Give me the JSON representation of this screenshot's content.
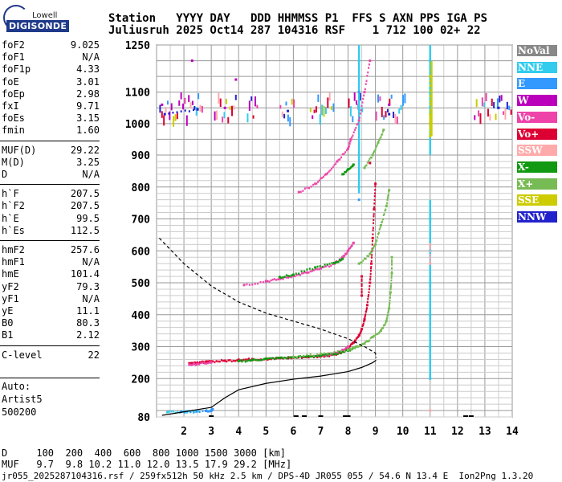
{
  "logo": {
    "top": "Lowell",
    "main": "DIGISONDE"
  },
  "header": {
    "line1": "Station   YYYY DAY   DDD HHMMSS P1  FFS S AXN PPS IGA PS",
    "line2": "Juliusruh 2025 Oct14 287 104316 RSF    1 712 100 02+ 22"
  },
  "params": {
    "group1": [
      {
        "label": "foF2",
        "value": "9.025"
      },
      {
        "label": "foF1",
        "value": "N/A"
      },
      {
        "label": "foF1p",
        "value": "4.33"
      },
      {
        "label": "foE",
        "value": "3.01"
      },
      {
        "label": "foEp",
        "value": "2.98"
      },
      {
        "label": "fxI",
        "value": "9.71"
      },
      {
        "label": "foEs",
        "value": "3.15"
      },
      {
        "label": "fmin",
        "value": "1.60"
      }
    ],
    "group2": [
      {
        "label": "MUF(D)",
        "value": "29.22"
      },
      {
        "label": "M(D)",
        "value": "3.25"
      },
      {
        "label": "D",
        "value": "N/A"
      }
    ],
    "group3": [
      {
        "label": "h`F",
        "value": "207.5"
      },
      {
        "label": "h`F2",
        "value": "207.5"
      },
      {
        "label": "h`E",
        "value": "99.5"
      },
      {
        "label": "h`Es",
        "value": "112.5"
      }
    ],
    "group4": [
      {
        "label": "hmF2",
        "value": "257.6"
      },
      {
        "label": "hmF1",
        "value": "N/A"
      },
      {
        "label": "hmE",
        "value": "101.4"
      },
      {
        "label": "yF2",
        "value": "79.3"
      },
      {
        "label": "yF1",
        "value": "N/A"
      },
      {
        "label": "yE",
        "value": "11.1"
      },
      {
        "label": "B0",
        "value": "80.3"
      },
      {
        "label": "B1",
        "value": "2.12"
      }
    ],
    "group5": [
      {
        "label": "C-level",
        "value": "22"
      }
    ]
  },
  "auto": {
    "line1": "Auto:",
    "line2": "Artist5",
    "line3": "500200"
  },
  "legend": [
    {
      "label": "NoVal",
      "color": "#888888"
    },
    {
      "label": "NNE",
      "color": "#33ccee"
    },
    {
      "label": "E",
      "color": "#3399ff"
    },
    {
      "label": "W",
      "color": "#bb00bb"
    },
    {
      "label": "Vo-",
      "color": "#ee44aa"
    },
    {
      "label": "Vo+",
      "color": "#dd0033"
    },
    {
      "label": "SSW",
      "color": "#ffaaaa"
    },
    {
      "label": "X-",
      "color": "#119911"
    },
    {
      "label": "X+",
      "color": "#77bb55"
    },
    {
      "label": "SSE",
      "color": "#cccc00"
    },
    {
      "label": "NNW",
      "color": "#2222cc"
    }
  ],
  "footer": {
    "d_line": "D     100  200  400  600  800 1000 1500 3000 [km]",
    "muf_line": "MUF   9.7  9.8 10.2 11.0 12.0 13.5 17.9 29.2 [MHz]",
    "file_line": "jr055_2025287104316.rsf / 259fx512h 50 kHz 2.5 km / DPS-4D JR055 055 / 54.6 N 13.4 E  Ion2Png 1.3.20"
  },
  "chart_data": {
    "type": "scatter",
    "xlabel": "",
    "ylabel": "",
    "xlim": [
      1,
      14
    ],
    "ylim": [
      80,
      1250
    ],
    "y_scale": "piecewise (80-900 linear, 900-1250 compressed)",
    "x_ticks": [
      2,
      3,
      4,
      5,
      6,
      7,
      8,
      9,
      10,
      11,
      12,
      13,
      14
    ],
    "y_ticks": [
      80,
      200,
      300,
      400,
      500,
      600,
      700,
      800,
      900,
      1000,
      1100,
      1250
    ],
    "grid": true,
    "legend_position": "right",
    "series": [
      {
        "name": "Vo+",
        "color": "#dd0033",
        "points": [
          [
            2.2,
            248
          ],
          [
            2.4,
            250
          ],
          [
            2.6,
            251
          ],
          [
            2.8,
            252
          ],
          [
            3.0,
            254
          ],
          [
            3.5,
            256
          ],
          [
            4.0,
            259
          ],
          [
            4.5,
            261
          ],
          [
            5.0,
            262
          ],
          [
            5.5,
            264
          ],
          [
            6.0,
            266
          ],
          [
            6.5,
            268
          ],
          [
            7.0,
            270
          ],
          [
            7.5,
            276
          ],
          [
            7.8,
            285
          ],
          [
            8.0,
            297
          ],
          [
            8.2,
            313
          ],
          [
            8.4,
            335
          ],
          [
            8.5,
            355
          ],
          [
            8.6,
            385
          ],
          [
            8.7,
            430
          ],
          [
            8.8,
            500
          ],
          [
            8.85,
            560
          ],
          [
            8.9,
            640
          ],
          [
            8.95,
            730
          ],
          [
            9.0,
            810
          ],
          [
            8.5,
            460
          ],
          [
            8.5,
            520
          ],
          [
            8.8,
            875
          ]
        ]
      },
      {
        "name": "Vo-",
        "color": "#ee44aa",
        "points": [
          [
            2.2,
            244
          ],
          [
            2.5,
            246
          ],
          [
            3.0,
            251
          ],
          [
            6.8,
            270
          ],
          [
            7.0,
            272
          ],
          [
            7.4,
            278
          ],
          [
            7.8,
            290
          ],
          [
            8.0,
            300
          ],
          [
            4.2,
            493
          ],
          [
            5.0,
            505
          ],
          [
            5.5,
            512
          ],
          [
            6.0,
            522
          ],
          [
            6.5,
            532
          ],
          [
            7.0,
            545
          ],
          [
            7.5,
            560
          ],
          [
            7.8,
            580
          ],
          [
            8.0,
            600
          ],
          [
            8.2,
            625
          ],
          [
            6.2,
            784
          ],
          [
            6.8,
            810
          ],
          [
            7.2,
            840
          ],
          [
            7.6,
            880
          ],
          [
            8.0,
            920
          ],
          [
            8.1,
            950
          ],
          [
            8.4,
            1010
          ],
          [
            8.6,
            1100
          ],
          [
            8.8,
            1200
          ]
        ]
      },
      {
        "name": "X-",
        "color": "#119911",
        "points": [
          [
            4.0,
            255
          ],
          [
            4.5,
            258
          ],
          [
            5.0,
            262
          ],
          [
            5.5,
            265
          ],
          [
            6.0,
            267
          ],
          [
            6.5,
            270
          ],
          [
            7.0,
            272
          ],
          [
            7.5,
            278
          ],
          [
            8.0,
            288
          ],
          [
            8.3,
            300
          ],
          [
            7.8,
            840
          ],
          [
            8.0,
            855
          ],
          [
            8.2,
            870
          ],
          [
            5.5,
            518
          ],
          [
            6.0,
            525
          ],
          [
            6.8,
            548
          ],
          [
            7.5,
            562
          ],
          [
            7.8,
            575
          ]
        ]
      },
      {
        "name": "X+",
        "color": "#77bb55",
        "points": [
          [
            6.0,
            268
          ],
          [
            7.0,
            278
          ],
          [
            8.0,
            290
          ],
          [
            8.3,
            300
          ],
          [
            8.6,
            310
          ],
          [
            8.9,
            330
          ],
          [
            9.2,
            350
          ],
          [
            9.4,
            380
          ],
          [
            9.5,
            420
          ],
          [
            9.55,
            470
          ],
          [
            9.6,
            530
          ],
          [
            9.6,
            580
          ],
          [
            8.4,
            560
          ],
          [
            8.8,
            590
          ],
          [
            9.0,
            620
          ],
          [
            9.2,
            680
          ],
          [
            9.4,
            740
          ],
          [
            9.5,
            790
          ],
          [
            8.6,
            860
          ],
          [
            8.9,
            900
          ],
          [
            9.1,
            940
          ],
          [
            9.3,
            980
          ]
        ]
      },
      {
        "name": "NNE",
        "color": "#33ccee",
        "points": [
          [
            1.4,
            95
          ],
          [
            2.0,
            97
          ],
          [
            2.5,
            98
          ],
          [
            11.0,
            200
          ],
          [
            11.0,
            300
          ],
          [
            11.0,
            400
          ],
          [
            11.0,
            500
          ],
          [
            11.0,
            600
          ],
          [
            11.0,
            700
          ],
          [
            11.0,
            1000
          ],
          [
            11.0,
            1100
          ],
          [
            11.0,
            1200
          ],
          [
            8.4,
            800
          ],
          [
            8.4,
            900
          ],
          [
            8.4,
            1050
          ],
          [
            8.4,
            1200
          ]
        ]
      },
      {
        "name": "E",
        "color": "#3399ff",
        "points": [
          [
            1.9,
            96
          ],
          [
            2.8,
            99
          ],
          [
            3.0,
            101
          ],
          [
            3.05,
            104
          ],
          [
            8.4,
            760
          ],
          [
            8.4,
            1100
          ]
        ]
      },
      {
        "name": "W",
        "color": "#bb00bb",
        "points": [
          [
            1.2,
            1060
          ],
          [
            3.5,
            1050
          ],
          [
            9.5,
            1060
          ],
          [
            3.9,
            1140
          ],
          [
            2.3,
            1200
          ]
        ]
      },
      {
        "name": "NNW",
        "color": "#2222cc",
        "points": [
          [
            1.3,
            1030
          ],
          [
            2.5,
            1045
          ],
          [
            5.8,
            1040
          ],
          [
            9.5,
            1030
          ],
          [
            13.5,
            1050
          ]
        ]
      },
      {
        "name": "SSE",
        "color": "#cccc00",
        "points": [
          [
            11.0,
            960
          ],
          [
            11.0,
            1000
          ],
          [
            11.0,
            1030
          ],
          [
            11.0,
            1150
          ]
        ]
      },
      {
        "name": "SSW",
        "color": "#ffaaaa",
        "points": [
          [
            11.0,
            100
          ],
          [
            11.0,
            560
          ],
          [
            11.0,
            620
          ]
        ]
      }
    ],
    "profile_curve": {
      "name": "electron density profile",
      "points": [
        [
          1.2,
          85
        ],
        [
          2.0,
          96
        ],
        [
          3.0,
          110
        ],
        [
          3.5,
          140
        ],
        [
          4.0,
          165
        ],
        [
          5.0,
          185
        ],
        [
          6.0,
          198
        ],
        [
          7.0,
          208
        ],
        [
          8.0,
          222
        ],
        [
          8.5,
          235
        ],
        [
          8.9,
          250
        ],
        [
          9.025,
          257.6
        ]
      ]
    },
    "topside_curve": {
      "name": "topside profile",
      "points": [
        [
          1.1,
          640
        ],
        [
          2.0,
          560
        ],
        [
          3.0,
          490
        ],
        [
          4.0,
          440
        ],
        [
          5.0,
          405
        ],
        [
          6.0,
          380
        ],
        [
          7.0,
          355
        ],
        [
          8.0,
          325
        ],
        [
          8.6,
          300
        ],
        [
          9.0,
          280
        ],
        [
          9.025,
          265
        ]
      ]
    }
  }
}
